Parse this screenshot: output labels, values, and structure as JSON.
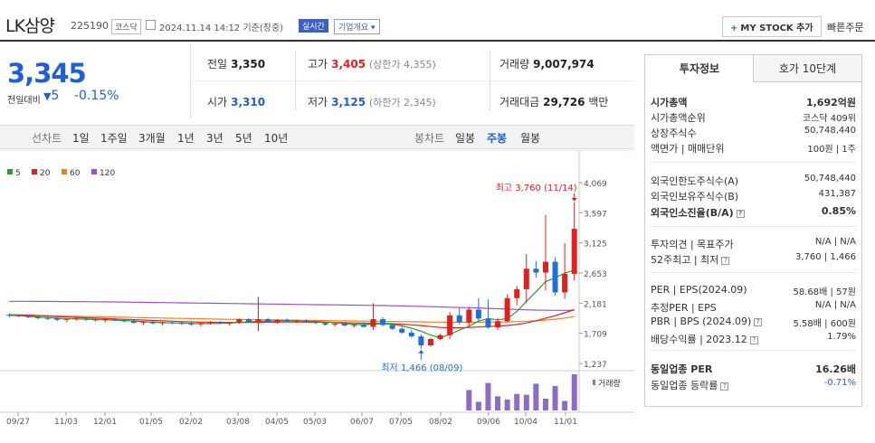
{
  "header": {
    "name": "LK삼양",
    "code": "225190",
    "market": "코스닥",
    "datetime": "2024.11.14 14:12",
    "basis": "기준(장중)",
    "live": "실시간",
    "overview": "기업개요",
    "mystock": "MY STOCK 추가",
    "quick_order": "빠른주문"
  },
  "price": {
    "current": "3,345",
    "change_label": "전일대비",
    "change_value": "5",
    "change_pct": "-0.15%",
    "color": "#2060d6"
  },
  "stats": {
    "prev_label": "전일",
    "prev": "3,350",
    "high_label": "고가",
    "high": "3,405",
    "upper_limit": "(상한가 4,355)",
    "volume_label": "거래량",
    "volume": "9,007,974",
    "open_label": "시가",
    "open": "3,310",
    "low_label": "저가",
    "low": "3,125",
    "lower_limit": "(하한가 2,345)",
    "amount_label": "거래대금",
    "amount": "29,726",
    "amount_unit": "백만"
  },
  "toolbar": {
    "line_chart": "선차트",
    "periods": [
      "1일",
      "1주일",
      "3개월",
      "1년",
      "3년",
      "5년",
      "10년"
    ],
    "candle_chart": "봉차트",
    "candle_types": [
      "일봉",
      "주봉",
      "월봉"
    ],
    "selected_candle": "주봉"
  },
  "chart_data": {
    "type": "candlestick",
    "legend": [
      {
        "name": "5",
        "color": "#2a9d2a"
      },
      {
        "name": "20",
        "color": "#e02020"
      },
      {
        "name": "60",
        "color": "#f08020"
      },
      {
        "name": "120",
        "color": "#9a50d0"
      }
    ],
    "y_ticks": [
      "4,069",
      "3,597",
      "3,125",
      "2,653",
      "2,181",
      "1,709",
      "1,237"
    ],
    "ylim": [
      1237,
      4069
    ],
    "x_ticks": [
      "09/27",
      "11/03",
      "12/01",
      "01/05",
      "02/02",
      "03/08",
      "04/05",
      "05/03",
      "06/07",
      "07/05",
      "08/02",
      "09/06",
      "10/04",
      "11/01"
    ],
    "max_annotation": "최고 3,760 (11/14)",
    "min_annotation": "최저 1,466 (08/09)",
    "volume_label": "거래량",
    "candles": [
      [
        2000,
        2020,
        1960,
        1990
      ],
      [
        1990,
        2010,
        1960,
        1975
      ],
      [
        1975,
        2000,
        1950,
        1960
      ],
      [
        1960,
        1985,
        1930,
        1950
      ],
      [
        1950,
        1975,
        1920,
        1945
      ],
      [
        1945,
        1960,
        1900,
        1920
      ],
      [
        1920,
        1945,
        1880,
        1935
      ],
      [
        1935,
        1960,
        1910,
        1940
      ],
      [
        1940,
        1960,
        1905,
        1925
      ],
      [
        1925,
        1950,
        1895,
        1915
      ],
      [
        1915,
        1940,
        1880,
        1930
      ],
      [
        1930,
        1950,
        1900,
        1910
      ],
      [
        1910,
        1935,
        1880,
        1900
      ],
      [
        1900,
        1920,
        1860,
        1875
      ],
      [
        1875,
        1900,
        1840,
        1890
      ],
      [
        1890,
        1905,
        1850,
        1865
      ],
      [
        1865,
        1890,
        1830,
        1880
      ],
      [
        1880,
        1905,
        1850,
        1870
      ],
      [
        1870,
        1895,
        1840,
        1860
      ],
      [
        1860,
        1880,
        1825,
        1850
      ],
      [
        1850,
        1880,
        1820,
        1870
      ],
      [
        1870,
        1900,
        1845,
        1885
      ],
      [
        1885,
        1905,
        1855,
        1865
      ],
      [
        1865,
        1890,
        1830,
        1875
      ],
      [
        1875,
        1940,
        1860,
        1930
      ],
      [
        1930,
        1950,
        1880,
        1895
      ],
      [
        1895,
        2280,
        1740,
        1930
      ],
      [
        1930,
        1950,
        1870,
        1880
      ],
      [
        1880,
        1930,
        1860,
        1920
      ],
      [
        1920,
        1940,
        1880,
        1895
      ],
      [
        1895,
        1925,
        1870,
        1910
      ],
      [
        1910,
        1930,
        1870,
        1885
      ],
      [
        1885,
        1910,
        1850,
        1870
      ],
      [
        1870,
        1890,
        1830,
        1845
      ],
      [
        1845,
        1870,
        1815,
        1860
      ],
      [
        1860,
        1880,
        1820,
        1830
      ],
      [
        1830,
        1855,
        1800,
        1840
      ],
      [
        1840,
        1880,
        1800,
        1810
      ],
      [
        1810,
        2180,
        1760,
        1930
      ],
      [
        1930,
        1960,
        1820,
        1840
      ],
      [
        1840,
        1860,
        1760,
        1780
      ],
      [
        1780,
        1810,
        1700,
        1720
      ],
      [
        1720,
        1760,
        1640,
        1660
      ],
      [
        1660,
        1690,
        1466,
        1520
      ],
      [
        1520,
        1640,
        1500,
        1620
      ],
      [
        1620,
        1700,
        1600,
        1680
      ],
      [
        1680,
        2040,
        1620,
        1990
      ],
      [
        1990,
        2100,
        1850,
        1880
      ],
      [
        1880,
        2120,
        1800,
        2080
      ],
      [
        2080,
        2260,
        1900,
        1940
      ],
      [
        1940,
        2240,
        1780,
        1800
      ],
      [
        1800,
        1950,
        1760,
        1900
      ],
      [
        1900,
        2320,
        1880,
        2260
      ],
      [
        2260,
        2450,
        2150,
        2400
      ],
      [
        2400,
        2950,
        2180,
        2720
      ],
      [
        2720,
        2840,
        2580,
        2660
      ],
      [
        2660,
        3560,
        2380,
        2830
      ],
      [
        2830,
        2900,
        2300,
        2350
      ],
      [
        2350,
        3120,
        2250,
        2640
      ],
      [
        2640,
        3760,
        2540,
        3345
      ]
    ],
    "ma5": [
      1990,
      1985,
      1975,
      1965,
      1955,
      1945,
      1935,
      1935,
      1930,
      1925,
      1920,
      1915,
      1910,
      1900,
      1890,
      1882,
      1875,
      1872,
      1868,
      1863,
      1860,
      1862,
      1866,
      1868,
      1880,
      1890,
      1895,
      1900,
      1905,
      1908,
      1905,
      1900,
      1895,
      1885,
      1875,
      1862,
      1852,
      1845,
      1855,
      1860,
      1850,
      1825,
      1790,
      1740,
      1680,
      1640,
      1690,
      1760,
      1820,
      1900,
      1940,
      1920,
      1940,
      2050,
      2210,
      2360,
      2520,
      2580,
      2650,
      2700
    ],
    "ma20": [
      2000,
      1998,
      1994,
      1988,
      1980,
      1972,
      1964,
      1958,
      1952,
      1946,
      1940,
      1934,
      1928,
      1922,
      1916,
      1910,
      1904,
      1898,
      1893,
      1888,
      1884,
      1882,
      1880,
      1879,
      1878,
      1879,
      1881,
      1883,
      1884,
      1885,
      1885,
      1884,
      1883,
      1881,
      1878,
      1875,
      1872,
      1868,
      1866,
      1864,
      1860,
      1852,
      1842,
      1830,
      1815,
      1800,
      1795,
      1795,
      1800,
      1808,
      1815,
      1822,
      1832,
      1848,
      1872,
      1905,
      1945,
      1985,
      2030,
      2080
    ],
    "ma60": [
      1990,
      1989,
      1988,
      1986,
      1984,
      1981,
      1978,
      1975,
      1972,
      1969,
      1966,
      1963,
      1960,
      1957,
      1954,
      1951,
      1948,
      1945,
      1942,
      1939,
      1936,
      1933,
      1930,
      1928,
      1926,
      1924,
      1922,
      1920,
      1918,
      1916,
      1914,
      1912,
      1910,
      1908,
      1906,
      1904,
      1902,
      1900,
      1898,
      1896,
      1894,
      1892,
      1890,
      1888,
      1886,
      1884,
      1883,
      1882,
      1882,
      1883,
      1884,
      1886,
      1888,
      1892,
      1898,
      1905,
      1915,
      1930,
      1948,
      1970
    ],
    "ma120": [
      2210,
      2210,
      2210,
      2209,
      2208,
      2207,
      2206,
      2205,
      2204,
      2203,
      2202,
      2200,
      2198,
      2196,
      2194,
      2192,
      2190,
      2188,
      2186,
      2184,
      2182,
      2180,
      2178,
      2176,
      2174,
      2172,
      2170,
      2168,
      2166,
      2164,
      2162,
      2160,
      2158,
      2156,
      2154,
      2152,
      2150,
      2148,
      2146,
      2144,
      2141,
      2138,
      2134,
      2130,
      2126,
      2122,
      2118,
      2114,
      2110,
      2106,
      2100,
      2094,
      2088,
      2082,
      2076,
      2072,
      2070,
      2068,
      2068,
      2070
    ],
    "volume": [
      0,
      0,
      0,
      0,
      0,
      0,
      0,
      0,
      0,
      0,
      0,
      0,
      0,
      0,
      0,
      0,
      0,
      0,
      0,
      0,
      0,
      0,
      0,
      0,
      0,
      0,
      0,
      0,
      0,
      0,
      0,
      0,
      0,
      0,
      0,
      0,
      0,
      0,
      0,
      0,
      0,
      0,
      0,
      0,
      0,
      0,
      0,
      0,
      52,
      22,
      70,
      36,
      28,
      42,
      40,
      68,
      30,
      62,
      24,
      92
    ]
  },
  "panel": {
    "tab_active": "투자정보",
    "tab_inactive": "호가 10단계",
    "rows": [
      {
        "k": "시가총액",
        "v": "1,692억원",
        "bold": true
      },
      {
        "k": "시가총액순위",
        "v": "코스닥 409위"
      },
      {
        "k": "상장주식수",
        "v": "50,748,440"
      },
      {
        "k": "액면가 | 매매단위",
        "v": "100원 | 1주"
      },
      {
        "k": "외국인한도주식수(A)",
        "v": "50,748,440"
      },
      {
        "k": "외국인보유주식수(B)",
        "v": "431,387"
      },
      {
        "k": "외국인소진율(B/A)",
        "v": "0.85%",
        "bold": true
      },
      {
        "k": "투자의견 | 목표주가",
        "v": "N/A | N/A"
      },
      {
        "k": "52주최고 | 최저",
        "v": "3,760 | 1,466"
      },
      {
        "k": "PER | EPS(2024.09)",
        "v": "58.68배 | 57원"
      },
      {
        "k": "추정PER | EPS",
        "v": "N/A | N/A"
      },
      {
        "k": "PBR | BPS (2024.09)",
        "v": "5.58배 | 600원"
      },
      {
        "k": "배당수익률 | 2023.12",
        "v": "1.79%"
      },
      {
        "k": "동일업종 PER",
        "v": "16.26배",
        "bold": true
      },
      {
        "k": "동일업종 등락률",
        "v": "-0.71%"
      }
    ]
  }
}
